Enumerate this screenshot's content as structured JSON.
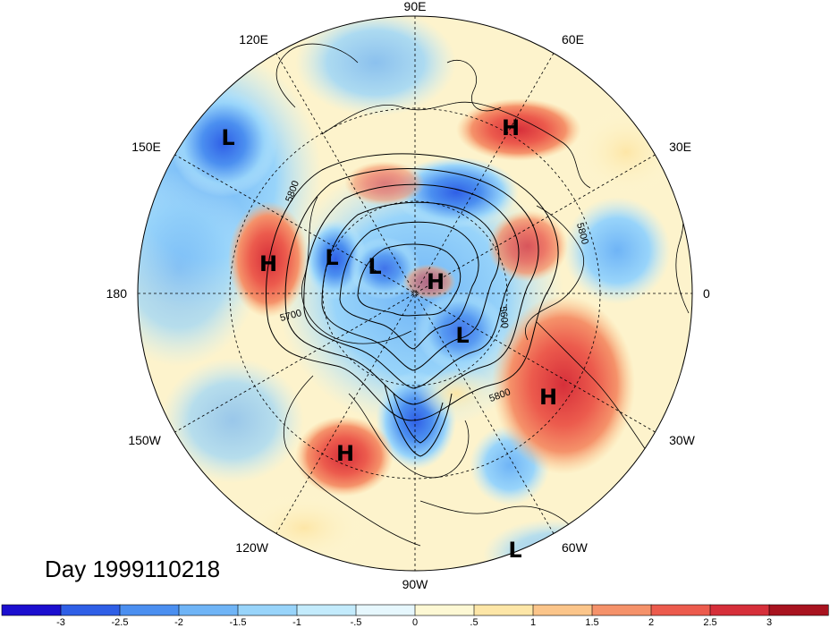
{
  "title": "Day 1999110218",
  "longitude_labels": [
    {
      "text": "90E",
      "deg": 90
    },
    {
      "text": "60E",
      "deg": 60
    },
    {
      "text": "30E",
      "deg": 30
    },
    {
      "text": "0",
      "deg": 0
    },
    {
      "text": "30W",
      "deg": -30
    },
    {
      "text": "60W",
      "deg": -60
    },
    {
      "text": "90W",
      "deg": -90
    },
    {
      "text": "120W",
      "deg": -120
    },
    {
      "text": "150W",
      "deg": -150
    },
    {
      "text": "180",
      "deg": 180
    },
    {
      "text": "150E",
      "deg": 150
    },
    {
      "text": "120E",
      "deg": 120
    }
  ],
  "pressure_centers": [
    {
      "type": "L",
      "name": "low-east-asia"
    },
    {
      "type": "H",
      "name": "high-central-russia"
    },
    {
      "type": "H",
      "name": "high-north-pacific"
    },
    {
      "type": "L",
      "name": "low-east-siberia"
    },
    {
      "type": "L",
      "name": "low-siberia-north"
    },
    {
      "type": "H",
      "name": "high-arctic"
    },
    {
      "type": "L",
      "name": "low-canadian-arctic"
    },
    {
      "type": "H",
      "name": "high-north-atlantic"
    },
    {
      "type": "H",
      "name": "high-east-pacific"
    },
    {
      "type": "L",
      "name": "low-south-america"
    }
  ],
  "contour_labels": [
    "5800",
    "5800",
    "5700",
    "5600",
    "5800"
  ],
  "colorbar": {
    "ticks": [
      "-3",
      "-2.5",
      "-2",
      "-1.5",
      "-1",
      "-.5",
      "0",
      ".5",
      "1",
      "1.5",
      "2",
      "2.5",
      "3"
    ],
    "colors": [
      "#1c0fcf",
      "#2f5fe6",
      "#4b8ff0",
      "#6fb4f6",
      "#98d4fa",
      "#c3ebfc",
      "#e6f7fd",
      "#fdf8d4",
      "#fde6a7",
      "#fbc58a",
      "#f5926a",
      "#ec5b4d",
      "#d62f3a",
      "#a8131f"
    ]
  }
}
